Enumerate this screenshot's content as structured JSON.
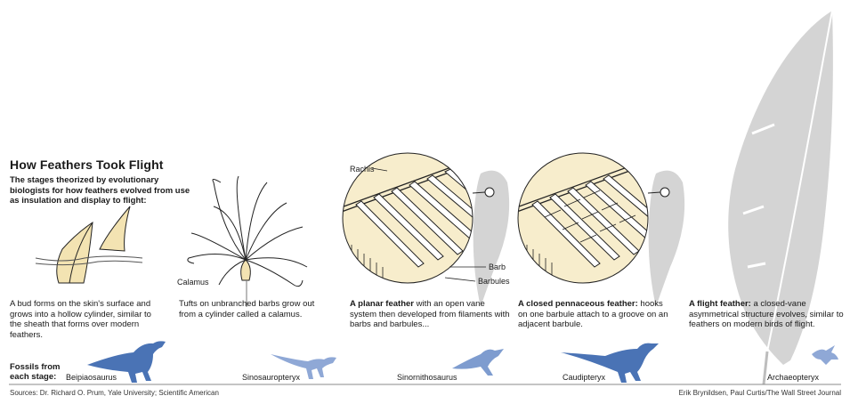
{
  "title": "How Feathers Took Flight",
  "subtitle": "The stages theorized by evolutionary biologists for how feathers evolved from use as insulation and display to flight:",
  "stages": [
    {
      "lead": "",
      "text": "A bud forms on the skin's surface and grows into a hollow cylinder, similar to the sheath that forms over modern feathers."
    },
    {
      "lead": "",
      "text": "Tufts on unbranched barbs grow out from a cylinder called a calamus."
    },
    {
      "lead": "A planar feather",
      "text": " with an open vane system then developed from filaments with barbs and barbules..."
    },
    {
      "lead": "A closed pennaceous feather:",
      "text": " hooks on one barbule attach to a groove on an adjacent barbule."
    },
    {
      "lead": "A flight feather:",
      "text": " a closed-vane asymmetrical structure evolves, similar to feathers on modern birds of flight."
    }
  ],
  "labels": {
    "calamus": "Calamus",
    "rachis": "Rachis",
    "barb": "Barb",
    "barbules": "Barbules"
  },
  "fossils": {
    "heading": "Fossils from each stage:",
    "names": [
      "Beipiaosaurus",
      "Sinosauropteryx",
      "Sinornithosaurus",
      "Caudipteryx",
      "Archaeopteryx"
    ]
  },
  "footer": {
    "sources": "Sources: Dr. Richard O. Prum, Yale University; Scientific American",
    "credit": "Erik Brynildsen, Paul Curtis/The Wall Street Journal"
  },
  "colors": {
    "fossil_blue": "#4a73b5",
    "fossil_light": "#8fa8d6",
    "feather_gray": "#cfcfcf",
    "cream": "#f7edcc",
    "cream_dark": "#e8d9a6"
  }
}
